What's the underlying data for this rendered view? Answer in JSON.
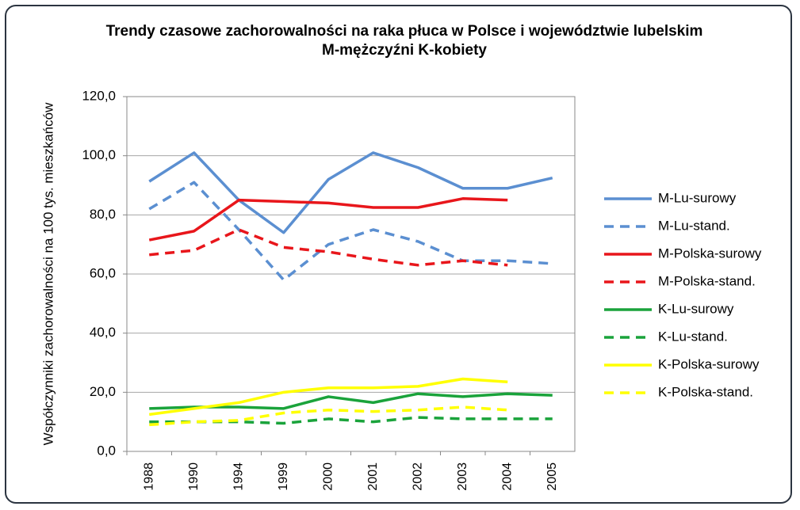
{
  "chart_data": {
    "type": "line",
    "title": "Trendy czasowe zachorowalności na raka płuca w Polsce i województwie lubelskim",
    "subtitle": "M-mężczyźni K-kobiety",
    "y_label": "Współczynniki zachorowalności na 100 tys. mieszkańców",
    "categories": [
      "1988",
      "1990",
      "1994",
      "1999",
      "2000",
      "2001",
      "2002",
      "2003",
      "2004",
      "2005"
    ],
    "ylim": [
      0,
      120
    ],
    "yticks": [
      {
        "value": 0,
        "label": "0,0"
      },
      {
        "value": 20,
        "label": "20,0"
      },
      {
        "value": 40,
        "label": "40,0"
      },
      {
        "value": 60,
        "label": "60,0"
      },
      {
        "value": 80,
        "label": "80,0"
      },
      {
        "value": 100,
        "label": "100,0"
      },
      {
        "value": 120,
        "label": "120,0"
      }
    ],
    "grid": true,
    "legend": "right",
    "series": [
      {
        "name": "M-Lu-surowy",
        "color": "#5b8fd1",
        "style": "solid",
        "values": [
          91.3,
          101,
          85,
          74,
          92,
          101,
          96,
          89,
          89,
          92.5
        ]
      },
      {
        "name": "M-Lu-stand.",
        "color": "#5b8fd1",
        "style": "dashed",
        "values": [
          82,
          91,
          75,
          58,
          70,
          75,
          71,
          64.5,
          64.5,
          63.5
        ]
      },
      {
        "name": "M-Polska-surowy",
        "color": "#e8161b",
        "style": "solid",
        "values": [
          71.5,
          74.5,
          85,
          84.5,
          84,
          82.5,
          82.5,
          85.5,
          85,
          null
        ]
      },
      {
        "name": "M-Polska-stand.",
        "color": "#e8161b",
        "style": "dashed",
        "values": [
          66.5,
          68,
          75,
          69,
          67.5,
          65,
          63,
          64.5,
          63,
          null
        ]
      },
      {
        "name": "K-Lu-surowy",
        "color": "#1aa33b",
        "style": "solid",
        "values": [
          14.5,
          15,
          15,
          14.5,
          18.5,
          16.5,
          19.5,
          18.5,
          19.5,
          19
        ]
      },
      {
        "name": "K-Lu-stand.",
        "color": "#1aa33b",
        "style": "dashed",
        "values": [
          10,
          10,
          10,
          9.5,
          11,
          10,
          11.5,
          11,
          11,
          11
        ]
      },
      {
        "name": "K-Polska-surowy",
        "color": "#ffff00",
        "style": "solid",
        "values": [
          12.5,
          14.5,
          16.5,
          20,
          21.5,
          21.5,
          22,
          24.5,
          23.5,
          null
        ]
      },
      {
        "name": "K-Polska-stand.",
        "color": "#ffff00",
        "style": "dashed",
        "values": [
          9,
          10,
          10.5,
          13,
          14,
          13.5,
          14,
          15,
          14,
          null
        ]
      }
    ]
  }
}
